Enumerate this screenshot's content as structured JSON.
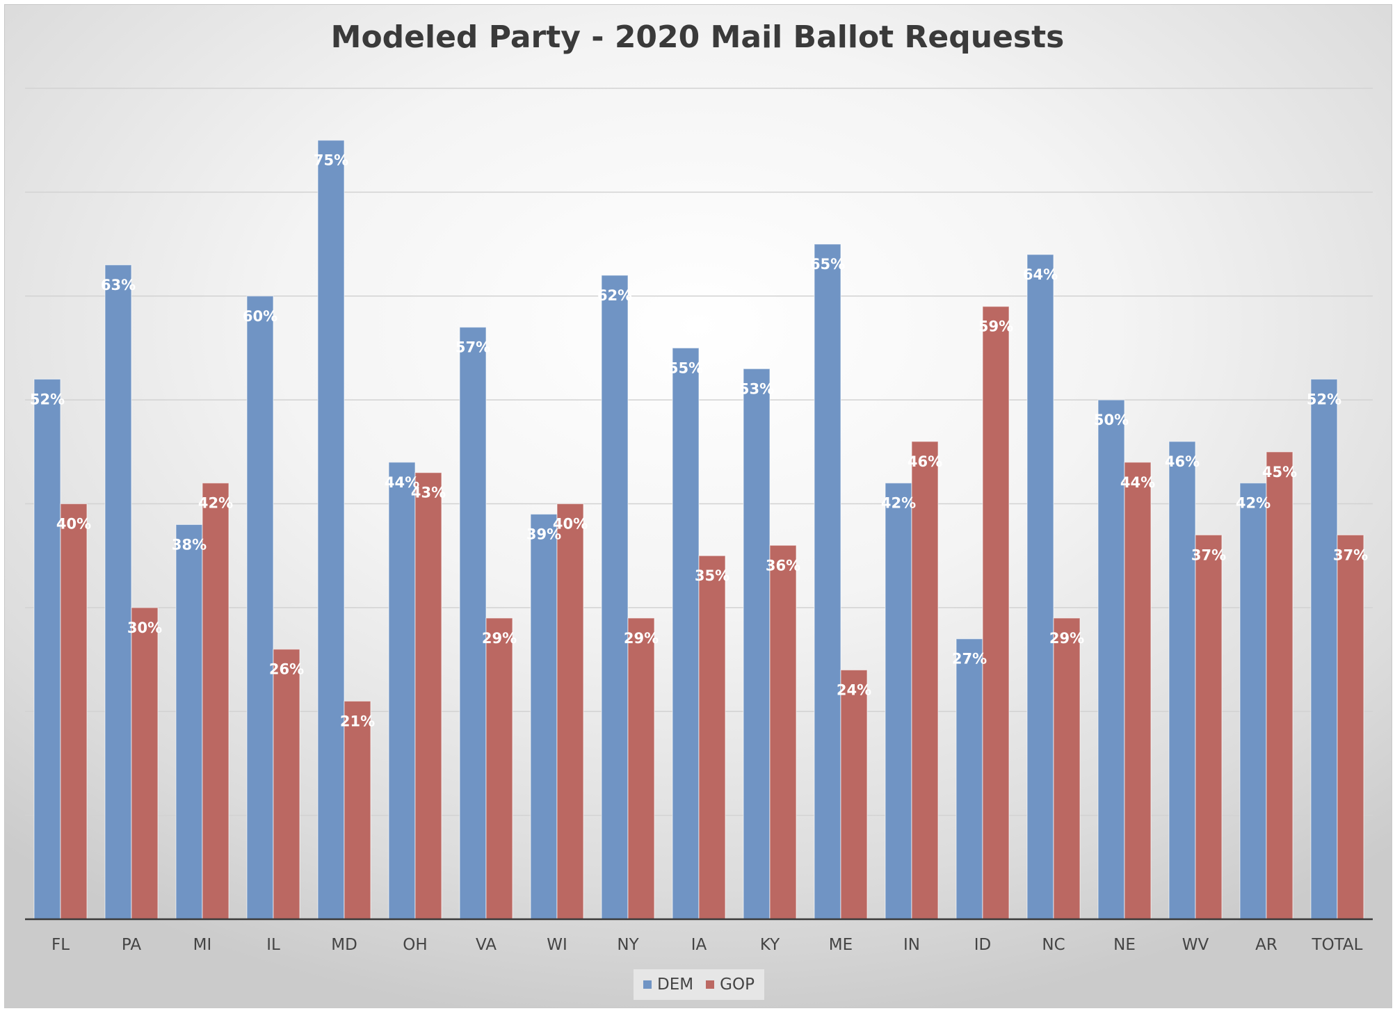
{
  "chart_data": {
    "type": "bar",
    "title": "Modeled Party - 2020 Mail Ballot Requests",
    "xlabel": "",
    "ylabel": "",
    "categories": [
      "FL",
      "PA",
      "MI",
      "IL",
      "MD",
      "OH",
      "VA",
      "WI",
      "NY",
      "IA",
      "KY",
      "ME",
      "IN",
      "ID",
      "NC",
      "NE",
      "WV",
      "AR",
      "TOTAL"
    ],
    "series": [
      {
        "name": "DEM",
        "color": "#7094c4",
        "values": [
          52,
          63,
          38,
          60,
          75,
          44,
          57,
          39,
          62,
          55,
          53,
          65,
          42,
          27,
          64,
          50,
          46,
          42,
          52
        ],
        "labels": [
          "52%",
          "63%",
          "38%",
          "60%",
          "75%",
          "44%",
          "57%",
          "39%",
          "62%",
          "55%",
          "53%",
          "65%",
          "42%",
          "27%",
          "64%",
          "50%",
          "46%",
          "42%",
          "52%"
        ]
      },
      {
        "name": "GOP",
        "color": "#bb6862",
        "values": [
          40,
          30,
          42,
          26,
          21,
          43,
          29,
          40,
          29,
          35,
          36,
          24,
          46,
          59,
          29,
          44,
          37,
          45,
          37
        ],
        "labels": [
          "40%",
          "30%",
          "42%",
          "26%",
          "21%",
          "43%",
          "29%",
          "40%",
          "29%",
          "35%",
          "36%",
          "24%",
          "46%",
          "59%",
          "29%",
          "44%",
          "37%",
          "45%",
          "37%"
        ]
      }
    ],
    "ylim": [
      0,
      80
    ],
    "grid": true,
    "legend_position": "bottom"
  }
}
